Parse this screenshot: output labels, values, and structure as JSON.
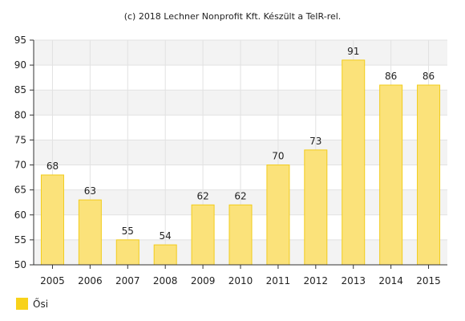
{
  "copyright": "(c) 2018 Lechner Nonprofit Kft. Készült a TeIR-rel.",
  "colors": {
    "bar_fill": "#fbe27a",
    "bar_stroke": "#f2cc1b",
    "legend_swatch": "#f8d21a",
    "band": "#f3f3f3",
    "grid": "#e2e2e2",
    "axis": "#333333"
  },
  "chart_data": {
    "type": "bar",
    "categories": [
      "2005",
      "2006",
      "2007",
      "2008",
      "2009",
      "2010",
      "2011",
      "2012",
      "2013",
      "2014",
      "2015"
    ],
    "series": [
      {
        "name": "Ősi",
        "values": [
          68,
          63,
          55,
          54,
          62,
          62,
          70,
          73,
          91,
          86,
          86
        ]
      }
    ],
    "ylim": [
      50,
      95
    ],
    "yticks": [
      50,
      55,
      60,
      65,
      70,
      75,
      80,
      85,
      90,
      95
    ],
    "grid": true,
    "legend_position": "bottom-left",
    "data_labels": true
  }
}
